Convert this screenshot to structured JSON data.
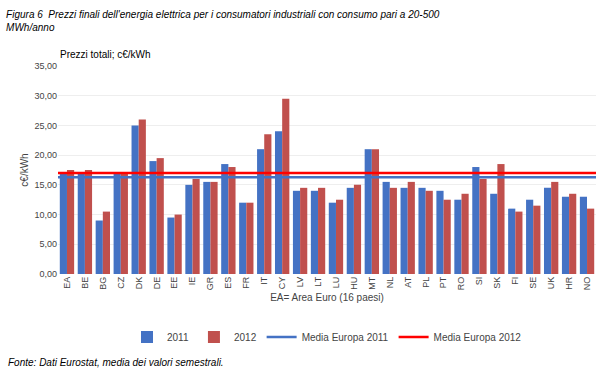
{
  "chart_data": {
    "type": "bar",
    "title": "Figura 6  Prezzi finali dell'energia elettrica per i consumatori industriali con consumo pari a 20-500\nMWh/anno",
    "subtitle": "Prezzi totali; c€/kWh",
    "xlabel": "EA= Area Euro (16 paesi)",
    "ylabel": "c€/kWh",
    "annotations": [
      "Fonte: Dati Eurostat, media dei valori semestrali."
    ],
    "categories": [
      "EA",
      "BE",
      "BG",
      "CZ",
      "DK",
      "DE",
      "EE",
      "IE",
      "GR",
      "ES",
      "FR",
      "IT",
      "CY",
      "LV",
      "LT",
      "LU",
      "HU",
      "MT",
      "NL",
      "AT",
      "PL",
      "PT",
      "RO",
      "SI",
      "SK",
      "FI",
      "SE",
      "UK",
      "HR",
      "NO"
    ],
    "series": [
      {
        "name": "2011",
        "color": "#4472C4",
        "values": [
          17.0,
          17.0,
          9.0,
          17.0,
          25.0,
          19.0,
          9.5,
          15.0,
          15.5,
          18.5,
          12.0,
          21.0,
          24.0,
          14.0,
          14.0,
          12.0,
          14.5,
          21.0,
          15.5,
          14.5,
          14.5,
          14.0,
          12.5,
          18.0,
          13.5,
          11.0,
          12.5,
          14.5,
          13.0,
          13.0
        ]
      },
      {
        "name": "2012",
        "color": "#C0504D",
        "values": [
          17.5,
          17.5,
          10.5,
          17.0,
          26.0,
          19.5,
          10.0,
          16.0,
          15.5,
          18.0,
          12.0,
          23.5,
          29.5,
          14.5,
          14.5,
          12.5,
          15.0,
          21.0,
          14.5,
          15.5,
          14.0,
          12.5,
          13.5,
          16.0,
          18.5,
          10.5,
          11.5,
          15.5,
          13.5,
          11.0
        ]
      },
      {
        "name": "Media Europa 2011",
        "type": "hline",
        "color": "#4472C4",
        "value": 16.3
      },
      {
        "name": "Media Europa 2012",
        "type": "hline",
        "color": "#FF0000",
        "value": 17.0
      }
    ],
    "ylim": [
      0,
      35
    ],
    "yticks": [
      {
        "value": 0,
        "label": "0,00"
      },
      {
        "value": 5,
        "label": "5,00"
      },
      {
        "value": 10,
        "label": "10,00"
      },
      {
        "value": 15,
        "label": "15,00"
      },
      {
        "value": 20,
        "label": "20,00"
      },
      {
        "value": 25,
        "label": "25,00"
      },
      {
        "value": 30,
        "label": "30,00"
      },
      {
        "value": 35,
        "label": "35,00"
      }
    ],
    "grid": true,
    "legend": "bottom"
  }
}
